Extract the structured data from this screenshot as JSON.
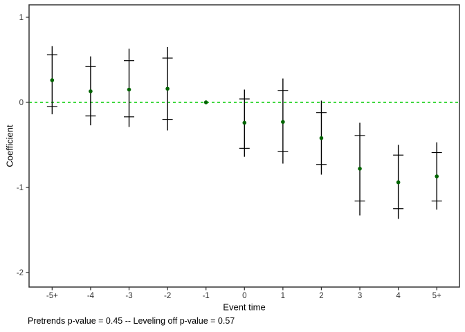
{
  "figure": {
    "ylabel": "Coefficient",
    "xlabel": "Event time",
    "caption": "Pretrends p-value = 0.45 -- Leveling off p-value = 0.57"
  },
  "chart_data": {
    "type": "scatter",
    "subtype": "event-study-errorbars",
    "title": "",
    "xlabel": "Event time",
    "ylabel": "Coefficient",
    "caption": "Pretrends p-value = 0.45 -- Leveling off p-value = 0.57",
    "x_tick_labels": [
      "-5+",
      "-4",
      "-3",
      "-2",
      "-1",
      "0",
      "1",
      "2",
      "3",
      "4",
      "5+"
    ],
    "x_positions": [
      -5,
      -4,
      -3,
      -2,
      -1,
      0,
      1,
      2,
      3,
      4,
      5
    ],
    "y_ticks": [
      1,
      0,
      -1,
      -2
    ],
    "xlim": [
      -5.6,
      5.59
    ],
    "ylim": [
      -2.171,
      1.146
    ],
    "grid": false,
    "legend": false,
    "reference_line": {
      "y": 0,
      "style": "dashed",
      "color": "#00CC00"
    },
    "colors": {
      "point": "#006400",
      "errorbar": "#000000",
      "axis": "#333333",
      "tick_text": "#333333",
      "text": "#000000",
      "background": "#ffffff"
    },
    "points": [
      {
        "label": "-5+",
        "x": -5,
        "estimate": 0.26,
        "ci_inner": [
          -0.05,
          0.56
        ],
        "ci_outer": [
          -0.14,
          0.66
        ],
        "reference": false
      },
      {
        "label": "-4",
        "x": -4,
        "estimate": 0.13,
        "ci_inner": [
          -0.16,
          0.42
        ],
        "ci_outer": [
          -0.27,
          0.54
        ],
        "reference": false
      },
      {
        "label": "-3",
        "x": -3,
        "estimate": 0.15,
        "ci_inner": [
          -0.17,
          0.49
        ],
        "ci_outer": [
          -0.29,
          0.63
        ],
        "reference": false
      },
      {
        "label": "-2",
        "x": -2,
        "estimate": 0.16,
        "ci_inner": [
          -0.2,
          0.52
        ],
        "ci_outer": [
          -0.33,
          0.65
        ],
        "reference": false
      },
      {
        "label": "-1",
        "x": -1,
        "estimate": 0.0,
        "ci_inner": null,
        "ci_outer": null,
        "reference": true
      },
      {
        "label": "0",
        "x": 0,
        "estimate": -0.24,
        "ci_inner": [
          -0.54,
          0.04
        ],
        "ci_outer": [
          -0.64,
          0.15
        ],
        "reference": false
      },
      {
        "label": "1",
        "x": 1,
        "estimate": -0.23,
        "ci_inner": [
          -0.58,
          0.14
        ],
        "ci_outer": [
          -0.72,
          0.28
        ],
        "reference": false
      },
      {
        "label": "2",
        "x": 2,
        "estimate": -0.42,
        "ci_inner": [
          -0.73,
          -0.12
        ],
        "ci_outer": [
          -0.85,
          0.02
        ],
        "reference": false
      },
      {
        "label": "3",
        "x": 3,
        "estimate": -0.78,
        "ci_inner": [
          -1.16,
          -0.39
        ],
        "ci_outer": [
          -1.33,
          -0.24
        ],
        "reference": false
      },
      {
        "label": "4",
        "x": 4,
        "estimate": -0.94,
        "ci_inner": [
          -1.25,
          -0.62
        ],
        "ci_outer": [
          -1.37,
          -0.5
        ],
        "reference": false
      },
      {
        "label": "5+",
        "x": 5,
        "estimate": -0.87,
        "ci_inner": [
          -1.16,
          -0.59
        ],
        "ci_outer": [
          -1.26,
          -0.47
        ],
        "reference": false
      }
    ]
  }
}
